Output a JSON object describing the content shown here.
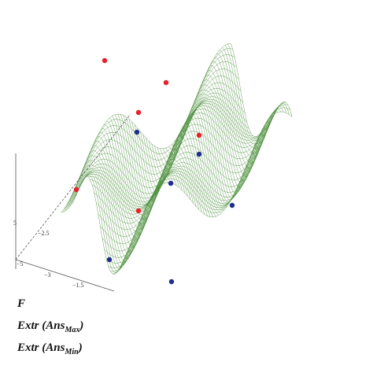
{
  "axes": {
    "labels": [
      "5",
      "−2.5",
      "−5",
      "−3",
      "−1.5"
    ]
  },
  "legend": [
    {
      "text": "F"
    },
    {
      "text": "Extr (Ans",
      "subscript": "Max",
      "suffix": ")"
    },
    {
      "text": "Extr (Ans",
      "subscript": "Min",
      "suffix": ")"
    }
  ]
}
